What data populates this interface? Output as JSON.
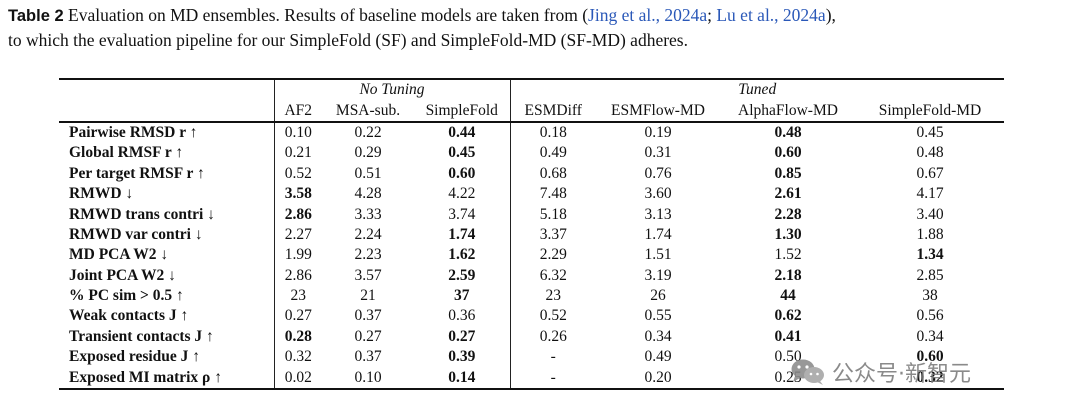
{
  "caption": {
    "label": "Table 2",
    "text_1": " Evaluation on MD ensembles. Results of baseline models are taken from (",
    "cite_1": "Jing et al., 2024a",
    "sep": "; ",
    "cite_2": "Lu et al., 2024a",
    "text_2": "),",
    "line_2": "to which the evaluation pipeline for our SimpleFold (SF) and SimpleFold-MD (SF-MD) adheres."
  },
  "table": {
    "group_no_tuning": "No Tuning",
    "group_tuned": "Tuned",
    "columns": [
      "AF2",
      "MSA-sub.",
      "SimpleFold",
      "ESMDiff",
      "ESMFlow-MD",
      "AlphaFlow-MD",
      "SimpleFold-MD"
    ],
    "rows": [
      {
        "metric": "Pairwise RMSD r ↑",
        "values": [
          "0.10",
          "0.22",
          "0.44",
          "0.18",
          "0.19",
          "0.48",
          "0.45"
        ],
        "bold": [
          2,
          5
        ]
      },
      {
        "metric": "Global RMSF r ↑",
        "values": [
          "0.21",
          "0.29",
          "0.45",
          "0.49",
          "0.31",
          "0.60",
          "0.48"
        ],
        "bold": [
          2,
          5
        ]
      },
      {
        "metric": "Per target RMSF r ↑",
        "values": [
          "0.52",
          "0.51",
          "0.60",
          "0.68",
          "0.76",
          "0.85",
          "0.67"
        ],
        "bold": [
          2,
          5
        ]
      },
      {
        "metric": "RMWD ↓",
        "values": [
          "3.58",
          "4.28",
          "4.22",
          "7.48",
          "3.60",
          "2.61",
          "4.17"
        ],
        "bold": [
          0,
          5
        ]
      },
      {
        "metric": "RMWD trans contri ↓",
        "values": [
          "2.86",
          "3.33",
          "3.74",
          "5.18",
          "3.13",
          "2.28",
          "3.40"
        ],
        "bold": [
          0,
          5
        ]
      },
      {
        "metric": "RMWD var contri ↓",
        "values": [
          "2.27",
          "2.24",
          "1.74",
          "3.37",
          "1.74",
          "1.30",
          "1.88"
        ],
        "bold": [
          2,
          5
        ]
      },
      {
        "metric": "MD PCA W2 ↓",
        "values": [
          "1.99",
          "2.23",
          "1.62",
          "2.29",
          "1.51",
          "1.52",
          "1.34"
        ],
        "bold": [
          2,
          6
        ]
      },
      {
        "metric": "Joint PCA W2 ↓",
        "values": [
          "2.86",
          "3.57",
          "2.59",
          "6.32",
          "3.19",
          "2.18",
          "2.85"
        ],
        "bold": [
          2,
          5
        ]
      },
      {
        "metric": "% PC sim > 0.5 ↑",
        "values": [
          "23",
          "21",
          "37",
          "23",
          "26",
          "44",
          "38"
        ],
        "bold": [
          2,
          5
        ]
      },
      {
        "metric": "Weak contacts J ↑",
        "values": [
          "0.27",
          "0.37",
          "0.36",
          "0.52",
          "0.55",
          "0.62",
          "0.56"
        ],
        "bold": [
          5
        ]
      },
      {
        "metric": "Transient contacts J ↑",
        "values": [
          "0.28",
          "0.27",
          "0.27",
          "0.26",
          "0.34",
          "0.41",
          "0.34"
        ],
        "bold": [
          0,
          2,
          5
        ]
      },
      {
        "metric": "Exposed residue J ↑",
        "values": [
          "0.32",
          "0.37",
          "0.39",
          "-",
          "0.49",
          "0.50",
          "0.60"
        ],
        "bold": [
          2,
          6
        ]
      },
      {
        "metric": "Exposed MI matrix ρ ↑",
        "values": [
          "0.02",
          "0.10",
          "0.14",
          "-",
          "0.20",
          "0.25",
          "0.32"
        ],
        "bold": [
          2,
          6
        ]
      }
    ]
  },
  "watermark": {
    "text": "公众号·新智元",
    "icon": "wechat-icon"
  },
  "colors": {
    "citation": "#2a58b8",
    "text": "#111111",
    "watermark": "#7a7a7a"
  }
}
